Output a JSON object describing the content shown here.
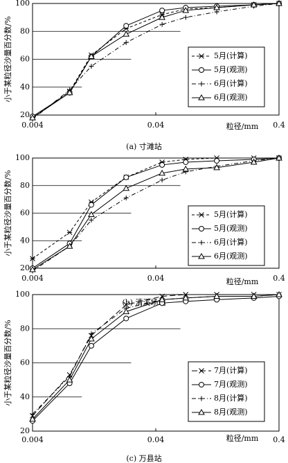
{
  "chart_data": [
    {
      "type": "line",
      "caption": "(a) 寸滩站",
      "xlabel": "粒径/mm",
      "ylabel": "小于某粒径沙量百分数/%",
      "xscale": "log",
      "x": [
        0.004,
        0.008,
        0.012,
        0.023,
        0.045,
        0.07,
        0.125,
        0.25,
        0.4
      ],
      "xlim": [
        0.004,
        0.4
      ],
      "xticks": [
        0.004,
        0.04,
        0.4
      ],
      "ylim": [
        20,
        100
      ],
      "yticks": [
        20,
        40,
        60,
        80,
        100
      ],
      "grid": true,
      "legend": "right",
      "series": [
        {
          "name": "5月(计算)",
          "color": "#000000",
          "dash": "4,3",
          "marker": "star",
          "values": [
            18,
            37,
            63,
            82,
            92,
            96,
            97,
            99,
            100
          ]
        },
        {
          "name": "5月(观测)",
          "color": "#000000",
          "dash": "none",
          "marker": "circle",
          "values": [
            19,
            36,
            62,
            84,
            95,
            97,
            98,
            99,
            100
          ]
        },
        {
          "name": "6月(计算)",
          "color": "#000000",
          "dash": "6,3,1,3",
          "marker": "plus",
          "values": [
            17,
            38,
            55,
            72,
            85,
            90,
            94,
            98,
            100
          ]
        },
        {
          "name": "6月(观测)",
          "color": "#000000",
          "dash": "none",
          "marker": "triangle",
          "values": [
            18,
            36,
            62,
            78,
            90,
            95,
            97,
            99,
            100
          ]
        }
      ]
    },
    {
      "type": "line",
      "caption": "(b) 清溪场站",
      "xlabel": "粒径/mm",
      "ylabel": "小于某粒径沙量百分数/%",
      "xscale": "log",
      "x": [
        0.004,
        0.008,
        0.012,
        0.023,
        0.045,
        0.07,
        0.125,
        0.25,
        0.4
      ],
      "xlim": [
        0.004,
        0.4
      ],
      "xticks": [
        0.004,
        0.04,
        0.4
      ],
      "ylim": [
        20,
        100
      ],
      "yticks": [
        20,
        40,
        60,
        80,
        100
      ],
      "grid": true,
      "legend": "right",
      "series": [
        {
          "name": "5月(计算)",
          "color": "#000000",
          "dash": "4,3",
          "marker": "star",
          "values": [
            27,
            46,
            68,
            86,
            97,
            99,
            100,
            100,
            100
          ]
        },
        {
          "name": "5月(观测)",
          "color": "#000000",
          "dash": "none",
          "marker": "circle",
          "values": [
            20,
            38,
            66,
            86,
            95,
            97,
            98,
            99,
            100
          ]
        },
        {
          "name": "6月(计算)",
          "color": "#000000",
          "dash": "6,3,1,3",
          "marker": "plus",
          "values": [
            18,
            36,
            55,
            71,
            84,
            90,
            94,
            98,
            100
          ]
        },
        {
          "name": "6月(观测)",
          "color": "#000000",
          "dash": "none",
          "marker": "triangle",
          "values": [
            19,
            36,
            59,
            78,
            89,
            92,
            93,
            97,
            100
          ]
        }
      ]
    },
    {
      "type": "line",
      "caption": "(c) 万县站",
      "xlabel": "粒径/mm",
      "ylabel": "小于某粒径沙量百分数/%",
      "xscale": "log",
      "x": [
        0.004,
        0.008,
        0.012,
        0.023,
        0.045,
        0.07,
        0.125,
        0.25,
        0.4
      ],
      "xlim": [
        0.004,
        0.4
      ],
      "xticks": [
        0.004,
        0.04,
        0.4
      ],
      "ylim": [
        20,
        100
      ],
      "yticks": [
        20,
        40,
        60,
        80,
        100
      ],
      "grid": true,
      "legend": "right",
      "series": [
        {
          "name": "7月(计算)",
          "color": "#000000",
          "dash": "8,4",
          "marker": "cross",
          "values": [
            29,
            53,
            76,
            94,
            99,
            100,
            100,
            100,
            100
          ]
        },
        {
          "name": "7月(观测)",
          "color": "#000000",
          "dash": "none",
          "marker": "circle",
          "values": [
            26,
            48,
            70,
            86,
            95,
            96,
            97,
            98,
            99
          ]
        },
        {
          "name": "8月(计算)",
          "color": "#000000",
          "dash": "6,3,1,3",
          "marker": "plus",
          "values": [
            30,
            52,
            77,
            92,
            97,
            98,
            99,
            99,
            100
          ]
        },
        {
          "name": "8月(观测)",
          "color": "#000000",
          "dash": "none",
          "marker": "triangle",
          "values": [
            27,
            50,
            74,
            90,
            97,
            98,
            99,
            99,
            100
          ]
        }
      ]
    }
  ]
}
